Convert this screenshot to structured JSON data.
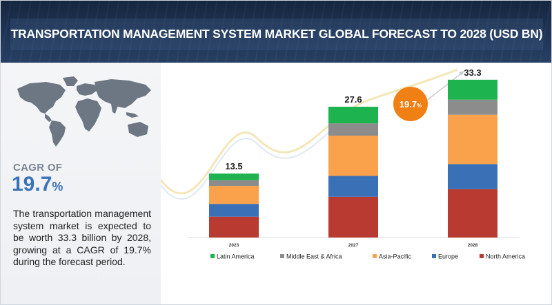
{
  "header": {
    "title": "TRANSPORTATION MANAGEMENT SYSTEM MARKET GLOBAL FORECAST TO 2028 (USD BN)"
  },
  "left_panel": {
    "cagr_label": "CAGR OF",
    "cagr_value": "19.7",
    "cagr_unit": "%",
    "description": "The transportation management system market is expected to be worth 33.3 billion by 2028, growing at a CAGR of 19.7% during the forecast period."
  },
  "growth_badge": {
    "value": "19.7",
    "unit": "%",
    "color": "#f07f14"
  },
  "chart_data": {
    "type": "bar",
    "stacked": true,
    "title": "TRANSPORTATION MANAGEMENT SYSTEM MARKET GLOBAL FORECAST TO 2028 (USD BN)",
    "categories": [
      "2023",
      "2027",
      "2028"
    ],
    "totals": [
      "13.5",
      "27.6",
      "33.3"
    ],
    "series": [
      {
        "name": "North America",
        "color": "#b83a30",
        "values": [
          4.4,
          8.6,
          10.2
        ]
      },
      {
        "name": "Europe",
        "color": "#3a70b5",
        "values": [
          2.7,
          4.4,
          5.3
        ]
      },
      {
        "name": "Asia-Pacific",
        "color": "#f9a24b",
        "values": [
          3.8,
          8.5,
          10.4
        ]
      },
      {
        "name": "Middle East & Africa",
        "color": "#8c8c8c",
        "values": [
          1.2,
          2.6,
          3.2
        ]
      },
      {
        "name": "Latin America",
        "color": "#1db34f",
        "values": [
          1.4,
          3.5,
          4.2
        ]
      }
    ],
    "legend_order": [
      "Latin America",
      "Middle East & Africa",
      "Asia-Pacific",
      "Europe",
      "North America"
    ],
    "legend_position": "bottom",
    "grid": false,
    "ylim": [
      0,
      34
    ]
  }
}
